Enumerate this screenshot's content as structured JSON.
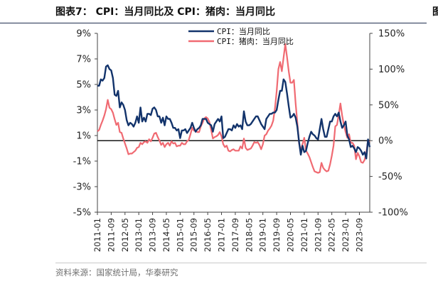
{
  "figure": {
    "title": "图表7：  CPI：当月同比及 CPI：猪肉：当月同比",
    "edge_glyph": "图",
    "source": "资料来源：国家统计局，华泰研究"
  },
  "chart_data": {
    "type": "line",
    "title": "",
    "xlabel": "",
    "ylabel_left": "",
    "ylabel_right": "",
    "x": [
      "2011-01",
      "2011-02",
      "2011-03",
      "2011-04",
      "2011-05",
      "2011-06",
      "2011-07",
      "2011-08",
      "2011-09",
      "2011-10",
      "2011-11",
      "2011-12",
      "2012-01",
      "2012-02",
      "2012-03",
      "2012-04",
      "2012-05",
      "2012-06",
      "2012-07",
      "2012-08",
      "2012-09",
      "2012-10",
      "2012-11",
      "2012-12",
      "2013-01",
      "2013-02",
      "2013-03",
      "2013-04",
      "2013-05",
      "2013-06",
      "2013-07",
      "2013-08",
      "2013-09",
      "2013-10",
      "2013-11",
      "2013-12",
      "2014-01",
      "2014-02",
      "2014-03",
      "2014-04",
      "2014-05",
      "2014-06",
      "2014-07",
      "2014-08",
      "2014-09",
      "2014-10",
      "2014-11",
      "2014-12",
      "2015-01",
      "2015-02",
      "2015-03",
      "2015-04",
      "2015-05",
      "2015-06",
      "2015-07",
      "2015-08",
      "2015-09",
      "2015-10",
      "2015-11",
      "2015-12",
      "2016-01",
      "2016-02",
      "2016-03",
      "2016-04",
      "2016-05",
      "2016-06",
      "2016-07",
      "2016-08",
      "2016-09",
      "2016-10",
      "2016-11",
      "2016-12",
      "2017-01",
      "2017-02",
      "2017-03",
      "2017-04",
      "2017-05",
      "2017-06",
      "2017-07",
      "2017-08",
      "2017-09",
      "2017-10",
      "2017-11",
      "2017-12",
      "2018-01",
      "2018-02",
      "2018-03",
      "2018-04",
      "2018-05",
      "2018-06",
      "2018-07",
      "2018-08",
      "2018-09",
      "2018-10",
      "2018-11",
      "2018-12",
      "2019-01",
      "2019-02",
      "2019-03",
      "2019-04",
      "2019-05",
      "2019-06",
      "2019-07",
      "2019-08",
      "2019-09",
      "2019-10",
      "2019-11",
      "2019-12",
      "2020-01",
      "2020-02",
      "2020-03",
      "2020-04",
      "2020-05",
      "2020-06",
      "2020-07",
      "2020-08",
      "2020-09",
      "2020-10",
      "2020-11",
      "2020-12",
      "2021-01",
      "2021-02",
      "2021-03",
      "2021-04",
      "2021-05",
      "2021-06",
      "2021-07",
      "2021-08",
      "2021-09",
      "2021-10",
      "2021-11",
      "2021-12",
      "2022-01",
      "2022-02",
      "2022-03",
      "2022-04",
      "2022-05",
      "2022-06",
      "2022-07",
      "2022-08",
      "2022-09",
      "2022-10",
      "2022-11",
      "2022-12",
      "2023-01",
      "2023-02",
      "2023-03",
      "2023-04",
      "2023-05",
      "2023-06",
      "2023-07",
      "2023-08",
      "2023-09",
      "2023-10",
      "2023-11",
      "2023-12",
      "2024-01",
      "2024-02",
      "2024-03"
    ],
    "x_ticks": [
      "2011-01",
      "2011-09",
      "2012-05",
      "2013-01",
      "2013-09",
      "2014-05",
      "2015-01",
      "2015-09",
      "2016-05",
      "2017-01",
      "2017-09",
      "2018-05",
      "2019-01",
      "2019-09",
      "2020-05",
      "2021-01",
      "2021-09",
      "2022-05",
      "2023-01",
      "2023-09"
    ],
    "series": [
      {
        "name": "CPI：当月同比",
        "axis": "left",
        "color": "#12336b",
        "values": [
          4.9,
          4.9,
          5.4,
          5.3,
          5.5,
          6.4,
          6.5,
          6.2,
          6.1,
          5.5,
          4.2,
          4.1,
          4.5,
          3.2,
          3.6,
          3.4,
          3.0,
          2.2,
          1.8,
          2.0,
          1.9,
          1.7,
          2.0,
          2.5,
          2.0,
          3.2,
          2.1,
          2.4,
          2.1,
          2.7,
          2.7,
          2.6,
          3.1,
          3.2,
          3.0,
          2.5,
          2.5,
          2.0,
          2.4,
          1.8,
          2.5,
          2.3,
          2.3,
          2.0,
          1.6,
          1.6,
          1.4,
          1.5,
          0.8,
          1.4,
          1.4,
          1.5,
          1.2,
          1.4,
          1.6,
          2.0,
          1.6,
          1.3,
          1.5,
          1.6,
          1.8,
          2.3,
          2.3,
          2.3,
          2.0,
          1.9,
          1.8,
          1.3,
          1.9,
          2.1,
          2.3,
          2.1,
          2.5,
          0.8,
          0.9,
          1.2,
          1.5,
          1.5,
          1.4,
          1.8,
          1.6,
          1.9,
          1.7,
          1.8,
          1.5,
          2.9,
          2.1,
          1.8,
          1.8,
          1.9,
          2.1,
          2.3,
          2.5,
          2.5,
          2.2,
          1.9,
          1.7,
          1.5,
          2.3,
          2.5,
          2.7,
          2.7,
          2.8,
          2.8,
          3.0,
          3.8,
          4.5,
          4.5,
          5.4,
          5.2,
          4.3,
          3.3,
          2.4,
          2.5,
          2.7,
          2.4,
          1.7,
          0.5,
          -0.5,
          0.2,
          -0.3,
          -0.2,
          0.4,
          0.9,
          1.3,
          1.1,
          1.0,
          0.8,
          0.7,
          1.5,
          2.3,
          1.5,
          0.9,
          0.9,
          1.5,
          2.1,
          2.1,
          2.5,
          2.7,
          2.5,
          2.8,
          2.1,
          1.6,
          1.8,
          2.1,
          1.0,
          0.7,
          0.1,
          0.2,
          0.0,
          -0.3,
          0.1,
          0.0,
          -0.2,
          -0.5,
          -0.3,
          -0.8,
          0.7,
          0.1
        ]
      },
      {
        "name": "CPI：猪肉：当月同比",
        "axis": "right",
        "color": "#f06a72",
        "values": [
          13,
          15,
          22,
          28,
          35,
          44,
          57,
          46,
          44,
          39,
          30,
          22,
          25,
          12,
          11,
          3,
          -4,
          -11,
          -19,
          -18,
          -18,
          -16,
          -14,
          -10,
          -9,
          -3,
          -5,
          -2,
          -1,
          -3,
          2,
          -1,
          4,
          10,
          11,
          5,
          0,
          -6,
          -3,
          -9,
          -5,
          -3,
          -7,
          -1,
          -4,
          -3,
          -8,
          -7,
          -7,
          -3,
          -5,
          -5,
          -1,
          1,
          9,
          18,
          14,
          14,
          12,
          12,
          20,
          25,
          31,
          33,
          31,
          26,
          15,
          3,
          5,
          6,
          8,
          12,
          6,
          -5,
          -9,
          -7,
          -14,
          -15,
          -13,
          -12,
          -14,
          -14,
          -14,
          -8,
          -11,
          3,
          -10,
          -13,
          -12,
          -11,
          -7,
          -2,
          -3,
          -2,
          -6,
          -12,
          -5,
          7,
          9,
          14,
          17,
          21,
          28,
          45,
          69,
          100,
          110,
          97,
          116,
          135,
          117,
          97,
          81,
          81,
          85,
          52,
          25,
          -4,
          -13,
          -5,
          4,
          -14,
          -18,
          -23,
          -30,
          -37,
          -43,
          -44,
          -45,
          -44,
          -31,
          -38,
          -41,
          -43,
          -42,
          -33,
          -21,
          -7,
          20,
          22,
          36,
          52,
          35,
          22,
          12,
          4,
          9,
          -3,
          -3,
          -7,
          -26,
          -17,
          -22,
          -30,
          -31,
          -27,
          -17,
          0,
          -2
        ],
        "values_note": ""
      }
    ],
    "y_left": {
      "min": -5,
      "max": 9,
      "ticks": [
        9,
        7,
        5,
        3,
        1,
        -1,
        -3,
        -5
      ],
      "tick_labels": [
        "9%",
        "7%",
        "5%",
        "3%",
        "1%",
        "-1%",
        "-3%",
        "-5%"
      ]
    },
    "y_right": {
      "min": -100,
      "max": 150,
      "ticks": [
        150,
        100,
        50,
        0,
        -50,
        -100
      ],
      "tick_labels": [
        "150%",
        "100%",
        "50%",
        "0%",
        "-50%",
        "-100%"
      ]
    },
    "zero_line": true,
    "grid": false,
    "legend": {
      "placement": "top-center",
      "labels": [
        "CPI：当月同比",
        "CPI：猪肉：当月同比"
      ]
    }
  }
}
